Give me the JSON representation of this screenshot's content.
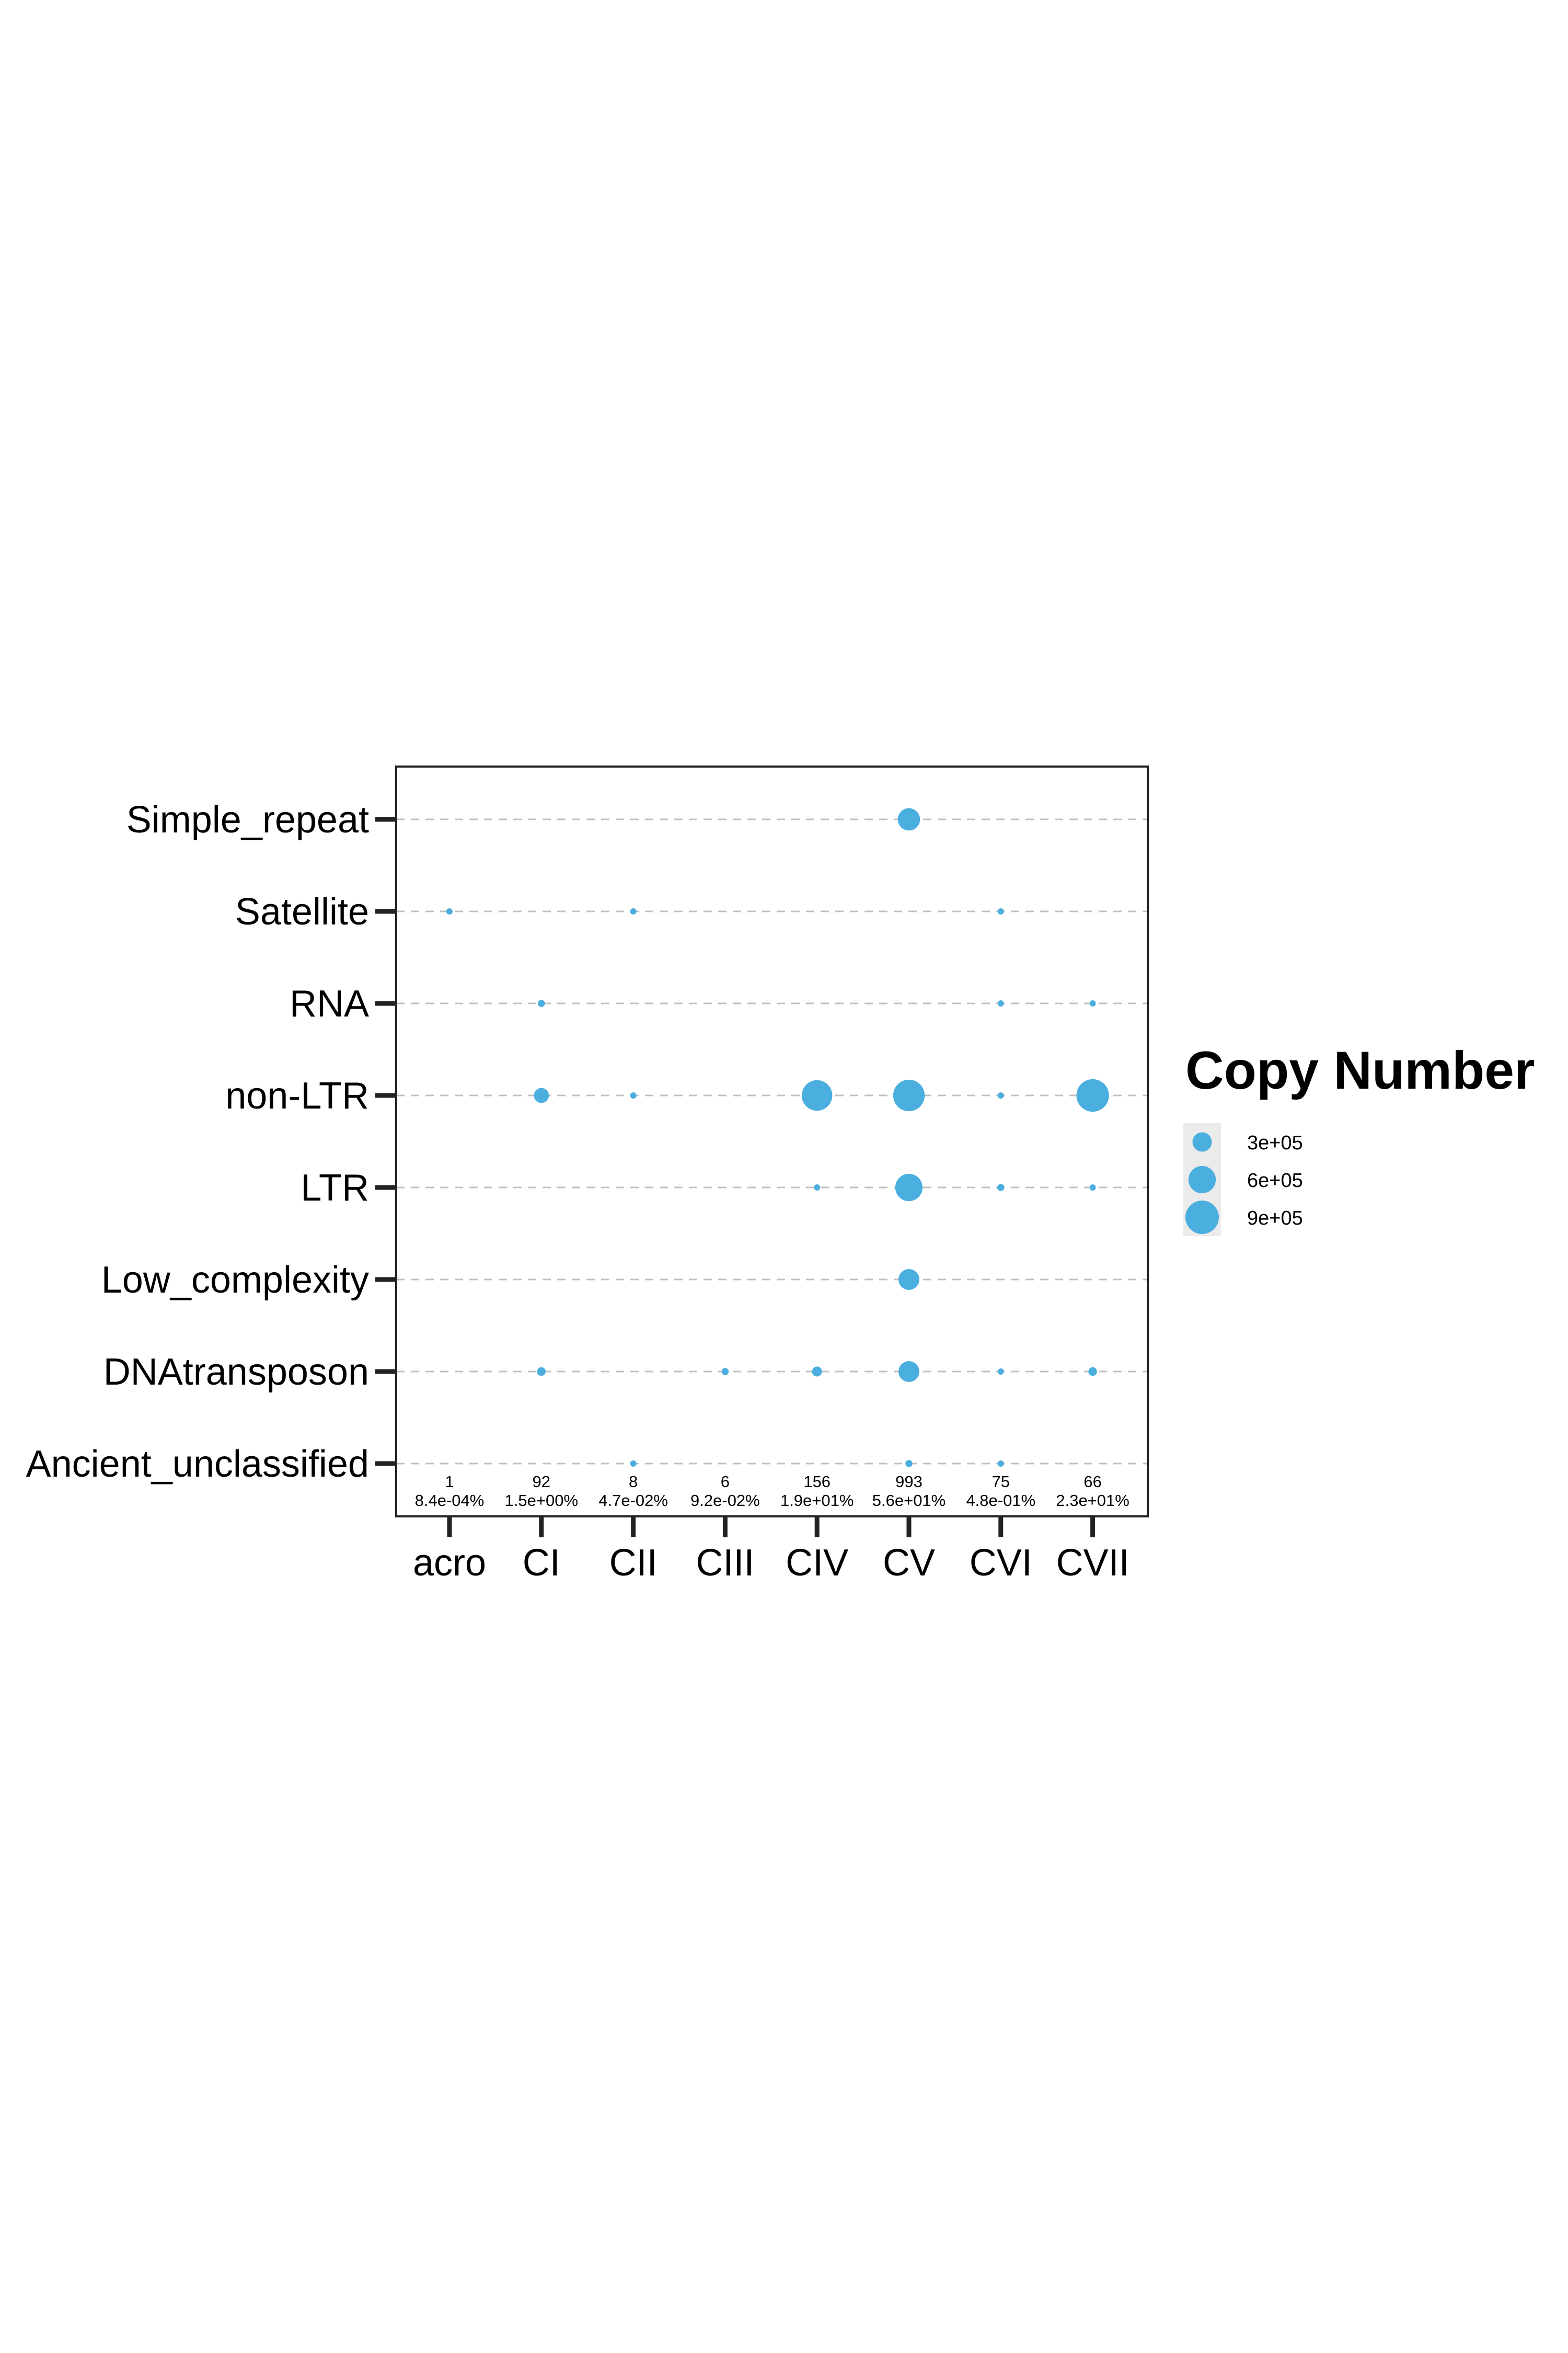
{
  "chart_data": {
    "type": "scatter",
    "title": "",
    "xlabel": "",
    "ylabel": "",
    "categories_x": [
      "acro",
      "CI",
      "CII",
      "CIII",
      "CIV",
      "CV",
      "CVI",
      "CVII"
    ],
    "categories_y": [
      "Ancient_unclassified",
      "DNAtransposon",
      "Low_complexity",
      "LTR",
      "non-LTR",
      "RNA",
      "Satellite",
      "Simple_repeat"
    ],
    "annotations": [
      {
        "x": "acro",
        "count": "1",
        "percent": "8.4e-04%"
      },
      {
        "x": "CI",
        "count": "92",
        "percent": "1.5e+00%"
      },
      {
        "x": "CII",
        "count": "8",
        "percent": "4.7e-02%"
      },
      {
        "x": "CIII",
        "count": "6",
        "percent": "9.2e-02%"
      },
      {
        "x": "CIV",
        "count": "156",
        "percent": "1.9e+01%"
      },
      {
        "x": "CV",
        "count": "993",
        "percent": "5.6e+01%"
      },
      {
        "x": "CVI",
        "count": "75",
        "percent": "4.8e-01%"
      },
      {
        "x": "CVII",
        "count": "66",
        "percent": "2.3e+01%"
      }
    ],
    "points": [
      {
        "x": "CV",
        "y": "Simple_repeat",
        "copy_number": 400000
      },
      {
        "x": "acro",
        "y": "Satellite",
        "copy_number": 20000
      },
      {
        "x": "CII",
        "y": "Satellite",
        "copy_number": 20000
      },
      {
        "x": "CVI",
        "y": "Satellite",
        "copy_number": 30000
      },
      {
        "x": "CI",
        "y": "RNA",
        "copy_number": 40000
      },
      {
        "x": "CVI",
        "y": "RNA",
        "copy_number": 30000
      },
      {
        "x": "CVII",
        "y": "RNA",
        "copy_number": 30000
      },
      {
        "x": "CI",
        "y": "non-LTR",
        "copy_number": 180000
      },
      {
        "x": "CII",
        "y": "non-LTR",
        "copy_number": 20000
      },
      {
        "x": "CIV",
        "y": "non-LTR",
        "copy_number": 750000
      },
      {
        "x": "CV",
        "y": "non-LTR",
        "copy_number": 800000
      },
      {
        "x": "CVI",
        "y": "non-LTR",
        "copy_number": 30000
      },
      {
        "x": "CVII",
        "y": "non-LTR",
        "copy_number": 850000
      },
      {
        "x": "CIV",
        "y": "LTR",
        "copy_number": 20000
      },
      {
        "x": "CV",
        "y": "LTR",
        "copy_number": 600000
      },
      {
        "x": "CVI",
        "y": "LTR",
        "copy_number": 40000
      },
      {
        "x": "CVII",
        "y": "LTR",
        "copy_number": 30000
      },
      {
        "x": "CV",
        "y": "Low_complexity",
        "copy_number": 350000
      },
      {
        "x": "CI",
        "y": "DNAtransposon",
        "copy_number": 60000
      },
      {
        "x": "CIII",
        "y": "DNAtransposon",
        "copy_number": 40000
      },
      {
        "x": "CIV",
        "y": "DNAtransposon",
        "copy_number": 80000
      },
      {
        "x": "CV",
        "y": "DNAtransposon",
        "copy_number": 350000
      },
      {
        "x": "CVI",
        "y": "DNAtransposon",
        "copy_number": 15000
      },
      {
        "x": "CVII",
        "y": "DNAtransposon",
        "copy_number": 60000
      },
      {
        "x": "CII",
        "y": "Ancient_unclassified",
        "copy_number": 20000
      },
      {
        "x": "CV",
        "y": "Ancient_unclassified",
        "copy_number": 40000
      },
      {
        "x": "CVI",
        "y": "Ancient_unclassified",
        "copy_number": 20000
      }
    ],
    "size_scale_max": 900000,
    "grid": "horizontal-dashed",
    "legend": {
      "title": "Copy Number",
      "placement": "right",
      "entries": [
        {
          "label": "3e+05",
          "value": 300000
        },
        {
          "label": "6e+05",
          "value": 600000
        },
        {
          "label": "9e+05",
          "value": 900000
        }
      ]
    },
    "colors": {
      "point": "#4aaedf",
      "gridline": "#c0c0c0",
      "frame": "#222222",
      "legend_key_bg": "#ebebeb"
    }
  }
}
